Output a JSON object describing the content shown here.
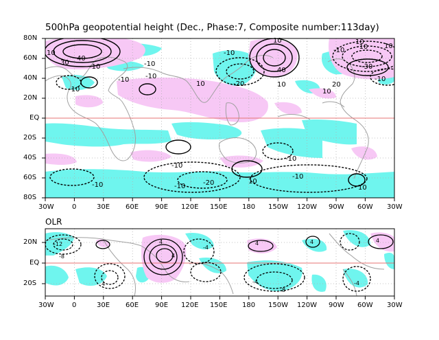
{
  "top_panel": {
    "title": "500hPa geopotential height (Dec., Phase:7, Composite number:113day)",
    "lat_labels": [
      "80N",
      "60N",
      "40N",
      "20N",
      "EQ",
      "20S",
      "40S",
      "60S",
      "80S"
    ],
    "lon_labels": [
      "30W",
      "0",
      "30E",
      "60E",
      "90E",
      "120E",
      "150E",
      "180",
      "150W",
      "120W",
      "90W",
      "60W",
      "30W"
    ],
    "contour_labels": [
      "10",
      "30",
      "40",
      "-10",
      "-10",
      "-10",
      "10",
      "-10",
      "-10",
      "10",
      "40",
      "-10",
      "10",
      "-20",
      "-10",
      "20",
      "10",
      "-10",
      "-30",
      "10",
      "-10",
      "-10",
      "-10",
      "-20",
      "-10",
      "-10",
      "10",
      "10",
      "-10",
      "10"
    ]
  },
  "bottom_panel": {
    "title": "OLR",
    "lat_labels": [
      "20N",
      "EQ",
      "20S"
    ],
    "lon_labels": [
      "30W",
      "0",
      "30E",
      "60E",
      "90E",
      "120E",
      "150E",
      "180",
      "150W",
      "120W",
      "90W",
      "60W",
      "30W"
    ],
    "contour_labels": [
      "-12",
      "-8",
      "4",
      "4",
      "4",
      "-4",
      "-8",
      "-4",
      "4",
      "4",
      "4",
      "-4"
    ]
  },
  "colors": {
    "positive_shade": "#f7c8f5",
    "negative_shade": "#6ff5ee",
    "equator_line": "#e57373",
    "coastline": "#a0a0a0",
    "grid": "#b0b0b0"
  }
}
